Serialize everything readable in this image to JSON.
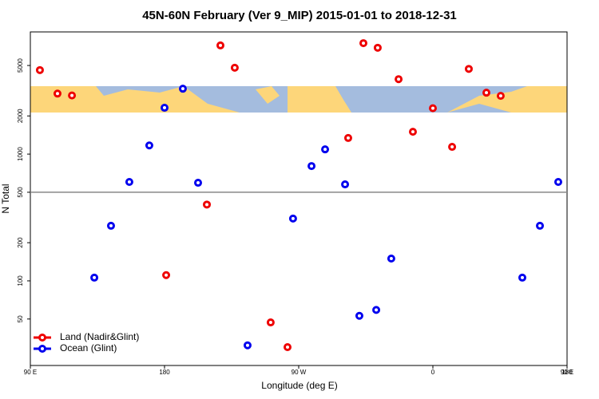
{
  "chart_data": {
    "type": "scatter",
    "title": "45N-60N February (Ver 9_MIP)   2015-01-01 to 2018-12-31",
    "x_label": "Longitude (deg E)",
    "y_label": "N Total",
    "xlim": [
      90,
      450
    ],
    "xticks": [
      {
        "value": 90,
        "label": "90 E"
      },
      {
        "value": 180,
        "label": "180"
      },
      {
        "value": 270,
        "label": "90 W"
      },
      {
        "value": 360,
        "label": "0"
      },
      {
        "value": 450,
        "label": "90 E"
      },
      {
        "value": 540,
        "label": "180"
      }
    ],
    "ylim": [
      21.5,
      9200
    ],
    "log_y": true,
    "yticks": [
      50,
      100,
      200,
      500,
      1000,
      2000,
      5000
    ],
    "reference_line": 500,
    "legend": "bottom-left",
    "series": [
      {
        "name": "Land (Nadir&Glint)",
        "color": "#ee0000",
        "x": [
          96.4,
          108.2,
          117.9,
          217.5,
          227.1,
          181.1,
          208.4,
          251.2,
          262.5,
          303.2,
          313.4,
          323.0,
          337.0,
          346.6,
          360.0,
          372.9,
          384.1,
          395.9,
          405.5
        ],
        "values": [
          4600,
          3000,
          2900,
          7200,
          4800,
          111,
          400,
          47,
          30,
          1340,
          7500,
          6900,
          3900,
          1500,
          2300,
          1140,
          4700,
          3050,
          2880
        ]
      },
      {
        "name": "Ocean (Glint)",
        "color": "#0000ee",
        "x": [
          132.9,
          144.1,
          156.4,
          169.8,
          180.0,
          192.3,
          202.5,
          235.7,
          266.2,
          278.6,
          287.7,
          301.1,
          310.7,
          322.0,
          332.1,
          420.0,
          431.8,
          444.1
        ],
        "values": [
          106,
          272,
          603,
          1170,
          2320,
          3280,
          594,
          31,
          310,
          805,
          1090,
          577,
          53,
          59,
          150,
          106,
          272,
          603
        ]
      }
    ]
  }
}
